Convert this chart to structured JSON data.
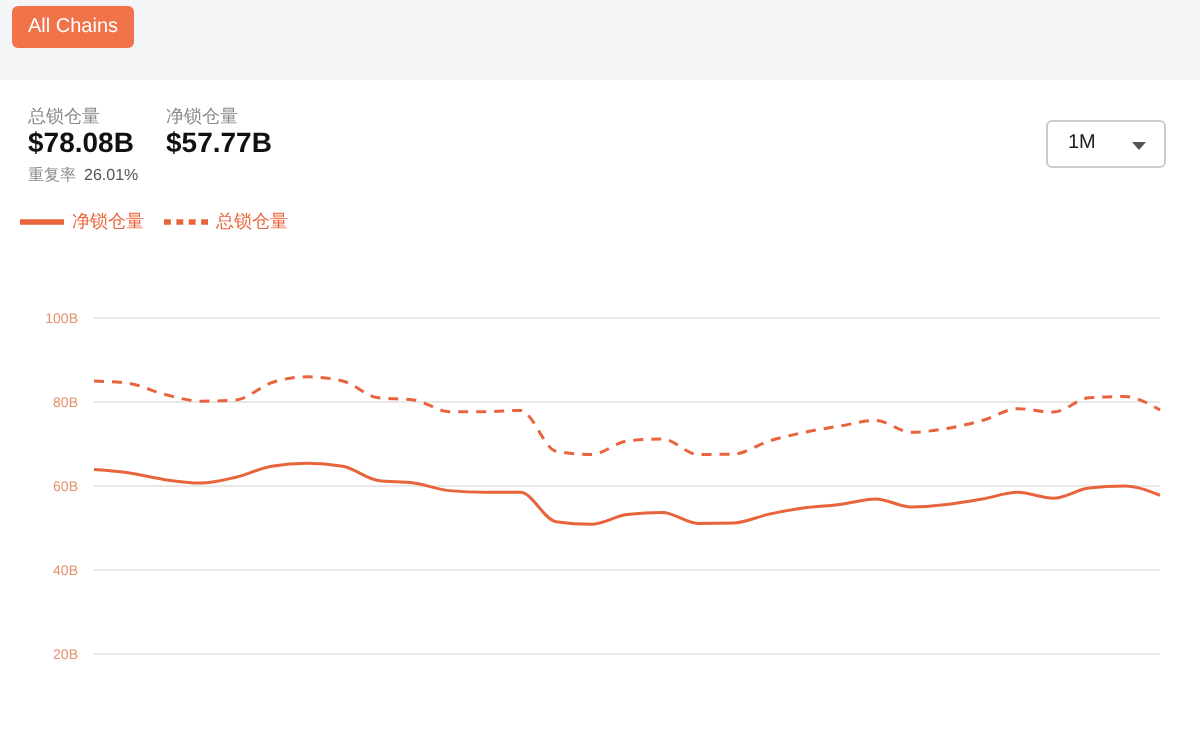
{
  "chart_data": {
    "type": "line",
    "annotations": [
      "All Chains",
      "总锁仓量",
      "$78.08B",
      "净锁仓量",
      "$57.77B",
      "重复率",
      "26.01%",
      "1M"
    ],
    "categories": [
      null,
      null,
      null,
      null,
      null,
      null,
      null,
      null,
      null,
      null,
      null,
      null,
      null,
      null,
      null,
      null,
      null,
      null,
      null,
      null,
      null,
      null,
      null,
      null,
      null,
      null,
      null,
      null,
      null,
      null,
      null
    ],
    "series": [
      {
        "name": "总锁仓量",
        "color": "#e8643c",
        "line_style": "dashed",
        "values": [
          85.0,
          84.4,
          81.8,
          80.2,
          80.5,
          84.6,
          86.0,
          85.0,
          81.0,
          80.5,
          77.7,
          77.7,
          78.0,
          68.3,
          67.5,
          70.7,
          71.2,
          67.5,
          67.6,
          70.7,
          72.8,
          74.3,
          75.6,
          72.8,
          73.7,
          75.6,
          78.4,
          77.6,
          81.0,
          81.3,
          78.1
        ]
      },
      {
        "name": "净锁仓量",
        "color": "#e8643c",
        "line_style": "solid",
        "values": [
          63.9,
          63.1,
          61.5,
          60.7,
          62.1,
          64.7,
          65.4,
          64.7,
          61.3,
          60.7,
          58.9,
          58.5,
          58.5,
          51.5,
          50.9,
          53.2,
          53.7,
          51.1,
          51.2,
          53.3,
          54.8,
          55.6,
          56.9,
          55.0,
          55.6,
          56.9,
          58.5,
          57.1,
          59.5,
          60.0,
          57.8
        ]
      }
    ],
    "ylim": [
      20,
      100
    ],
    "yticks": [
      {
        "value": 20,
        "label": "20B"
      },
      {
        "value": 40,
        "label": "40B"
      },
      {
        "value": 60,
        "label": "60B"
      },
      {
        "value": 80,
        "label": "80B"
      },
      {
        "value": 100,
        "label": "100B"
      }
    ],
    "grid": "y",
    "legend": "top left",
    "marker": "none",
    "tick_labels": "y"
  }
}
